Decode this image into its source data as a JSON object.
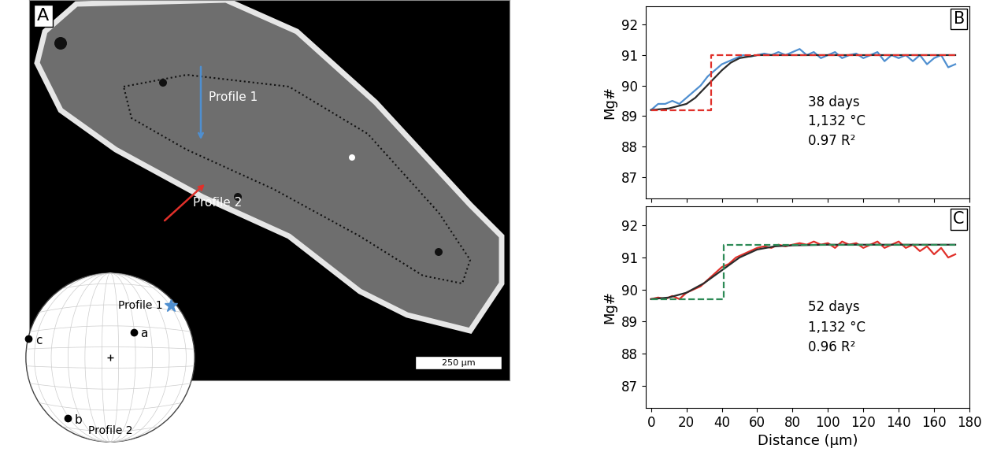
{
  "panel_a": {
    "label": "A",
    "profiles": [
      {
        "text": "Profile 1",
        "color": "#4f8fd0"
      },
      {
        "text": "Profile 2",
        "color": "#e0302a"
      }
    ],
    "scale_bar": "250 µm",
    "stereonet": {
      "points": [
        "a",
        "b",
        "c"
      ],
      "labels": [
        "Profile 1",
        "Profile 2"
      ]
    }
  },
  "chart_data": [
    {
      "type": "line",
      "panel": "B",
      "ylabel": "Mg#",
      "annotations": [
        "38 days",
        "1,132 °C",
        "0.97 R²"
      ],
      "xlim": [
        -3,
        180
      ],
      "ylim": [
        86.3,
        92.6
      ],
      "xticks": [
        0,
        20,
        40,
        60,
        80,
        100,
        120,
        140,
        160,
        180
      ],
      "yticks": [
        87,
        88,
        89,
        90,
        91,
        92
      ],
      "tick_labels": "y",
      "series": [
        {
          "color": "#4f8fd0",
          "line_style": "solid",
          "x": [
            0,
            4,
            8,
            12,
            16,
            20,
            24,
            28,
            32,
            36,
            40,
            44,
            48,
            52,
            56,
            60,
            64,
            68,
            72,
            76,
            80,
            84,
            88,
            92,
            96,
            100,
            104,
            108,
            112,
            116,
            120,
            124,
            128,
            132,
            136,
            140,
            144,
            148,
            152,
            156,
            160,
            164,
            168,
            172
          ],
          "values": [
            89.2,
            89.4,
            89.4,
            89.5,
            89.4,
            89.6,
            89.8,
            90.0,
            90.3,
            90.5,
            90.7,
            90.8,
            90.9,
            91.0,
            90.95,
            91.0,
            91.05,
            91.0,
            91.1,
            91.0,
            91.1,
            91.2,
            91.0,
            91.1,
            90.9,
            91.0,
            91.1,
            90.9,
            91.0,
            91.05,
            90.9,
            91.0,
            91.1,
            90.8,
            91.0,
            90.9,
            91.0,
            90.8,
            91.0,
            90.7,
            90.9,
            91.0,
            90.6,
            90.7
          ]
        },
        {
          "color": "#2b2b2b",
          "line_style": "solid",
          "x": [
            0,
            10,
            20,
            25,
            30,
            35,
            40,
            45,
            50,
            60,
            80,
            100,
            120,
            140,
            160,
            172
          ],
          "values": [
            89.2,
            89.25,
            89.4,
            89.6,
            89.9,
            90.2,
            90.5,
            90.75,
            90.9,
            91.0,
            91.0,
            91.0,
            91.0,
            91.0,
            91.0,
            91.0
          ]
        },
        {
          "color": "#e0302a",
          "line_style": "dashed",
          "x": [
            0,
            34,
            34,
            172
          ],
          "values": [
            89.2,
            89.2,
            91.0,
            91.0
          ]
        }
      ]
    },
    {
      "type": "line",
      "panel": "C",
      "ylabel": "Mg#",
      "xlabel": "Distance (µm)",
      "annotations": [
        "52 days",
        "1,132 °C",
        "0.96 R²"
      ],
      "xlim": [
        -3,
        180
      ],
      "ylim": [
        86.3,
        92.6
      ],
      "xticks": [
        0,
        20,
        40,
        60,
        80,
        100,
        120,
        140,
        160,
        180
      ],
      "yticks": [
        87,
        88,
        89,
        90,
        91,
        92
      ],
      "series": [
        {
          "color": "#e0302a",
          "line_style": "solid",
          "x": [
            0,
            4,
            8,
            12,
            16,
            20,
            24,
            28,
            32,
            36,
            40,
            44,
            48,
            52,
            56,
            60,
            64,
            68,
            72,
            76,
            80,
            84,
            88,
            92,
            96,
            100,
            104,
            108,
            112,
            116,
            120,
            124,
            128,
            132,
            136,
            140,
            144,
            148,
            152,
            156,
            160,
            164,
            168,
            172
          ],
          "values": [
            89.7,
            89.75,
            89.7,
            89.8,
            89.7,
            89.9,
            90.0,
            90.1,
            90.3,
            90.5,
            90.7,
            90.8,
            91.0,
            91.1,
            91.2,
            91.3,
            91.35,
            91.3,
            91.4,
            91.35,
            91.4,
            91.45,
            91.4,
            91.5,
            91.4,
            91.45,
            91.3,
            91.5,
            91.4,
            91.45,
            91.3,
            91.4,
            91.5,
            91.3,
            91.4,
            91.5,
            91.3,
            91.4,
            91.2,
            91.35,
            91.1,
            91.3,
            91.0,
            91.1
          ]
        },
        {
          "color": "#2b2b2b",
          "line_style": "solid",
          "x": [
            0,
            10,
            20,
            30,
            40,
            50,
            60,
            70,
            80,
            100,
            120,
            140,
            160,
            172
          ],
          "values": [
            89.7,
            89.75,
            89.9,
            90.2,
            90.6,
            91.0,
            91.25,
            91.35,
            91.38,
            91.4,
            91.4,
            91.4,
            91.4,
            91.4
          ]
        },
        {
          "color": "#2e8b57",
          "line_style": "dashed",
          "x": [
            0,
            41,
            41,
            172
          ],
          "values": [
            89.7,
            89.7,
            91.4,
            91.4
          ]
        }
      ]
    }
  ]
}
